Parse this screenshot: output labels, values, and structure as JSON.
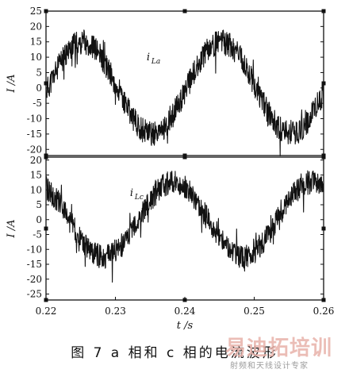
{
  "chart_data": [
    {
      "type": "line",
      "id": "ia",
      "series": [
        {
          "name": "i_La",
          "x_start": 0.22,
          "x_end": 0.26,
          "amplitude": 15,
          "period": 0.02,
          "phase_deg": -5,
          "ripple": 4
        }
      ],
      "annotation": {
        "base": "i",
        "sub": "La",
        "at": [
          0.2345,
          9
        ]
      },
      "ylabel": "I /A",
      "ylim": [
        -22,
        25
      ],
      "yticks": [
        "25",
        "20",
        "15",
        "10",
        "5",
        "0",
        "-5",
        "-10",
        "-15",
        "-20"
      ],
      "ytick_values": [
        25,
        20,
        15,
        10,
        5,
        0,
        -5,
        -10,
        -15,
        -20
      ],
      "xlim": [
        0.22,
        0.26
      ]
    },
    {
      "type": "line",
      "id": "ic",
      "series": [
        {
          "name": "i_Lc",
          "x_start": 0.22,
          "x_end": 0.26,
          "amplitude": 12.5,
          "period": 0.02,
          "phase_deg": 120,
          "ripple": 4
        }
      ],
      "annotation": {
        "base": "i",
        "sub": "Lc",
        "at": [
          0.2321,
          8
        ]
      },
      "ylabel": "I /A",
      "ylim": [
        -27,
        21
      ],
      "yticks": [
        "20",
        "15",
        "10",
        "5",
        "0",
        "-5",
        "-10",
        "-15",
        "-20",
        "-25"
      ],
      "ytick_values": [
        20,
        15,
        10,
        5,
        0,
        -5,
        -10,
        -15,
        -20,
        -25
      ],
      "xlim": [
        0.22,
        0.26
      ],
      "xticks": [
        "0.22",
        "0.23",
        "0.24",
        "0.25",
        "0.26"
      ],
      "xtick_values": [
        0.22,
        0.23,
        0.24,
        0.25,
        0.26
      ],
      "xlabel": "t /s"
    }
  ],
  "caption": "图 7  a 相和 c 相的电流波形",
  "watermark": {
    "main": "易迪拓培训",
    "sub": "射频和天线设计专家"
  }
}
